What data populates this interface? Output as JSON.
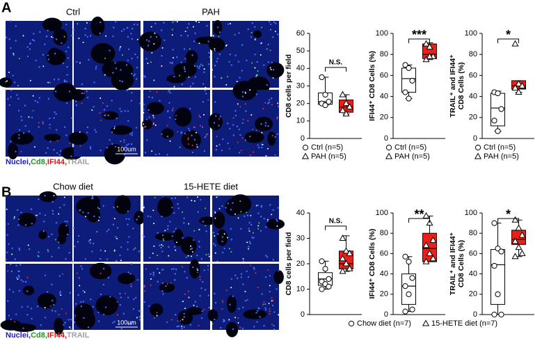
{
  "panels": [
    {
      "label": "A",
      "conditions": [
        "Ctrl",
        "PAH"
      ],
      "scale_bar": "100um",
      "stains": [
        {
          "text": "Nuclei,",
          "color": "#1a1ad8"
        },
        {
          "text": "Cd8,",
          "color": "#1a9a1a"
        },
        {
          "text": "IFI44,",
          "color": "#e01010"
        },
        {
          "text": "TRAIL",
          "color": "#a0a0a0"
        }
      ]
    },
    {
      "label": "B",
      "conditions": [
        "Chow diet",
        "15-HETE diet"
      ],
      "scale_bar": "100um",
      "stains": [
        {
          "text": "Nuclei,",
          "color": "#1a1ad8"
        },
        {
          "text": "Cd8,",
          "color": "#1a9a1a"
        },
        {
          "text": "IFI44,",
          "color": "#e01010"
        },
        {
          "text": "TRAIL",
          "color": "#a0a0a0"
        }
      ],
      "legend": [
        {
          "name": "Chow diet (n=7)",
          "marker": "circle"
        },
        {
          "name": "15-HETE diet (n=7)",
          "marker": "triangle"
        }
      ]
    }
  ],
  "chart_data": [
    {
      "type": "box",
      "ylabel": [
        "CD8 cells per field"
      ],
      "ylim": [
        0,
        60
      ],
      "yticks": [
        0,
        10,
        20,
        30,
        40,
        50,
        60
      ],
      "significance": "N.S.",
      "groups": [
        {
          "name": "Ctrl (n=5)",
          "marker": "circle",
          "color": "#ffffff",
          "whisker_low": 19,
          "q1": 19.5,
          "median": 21,
          "q3": 26,
          "whisker_high": 35,
          "points": [
            35,
            25,
            21,
            20,
            19
          ]
        },
        {
          "name": "PAH (n=5)",
          "marker": "triangle",
          "color": "#e8201a",
          "whisker_low": 14,
          "q1": 15,
          "median": 18,
          "q3": 22,
          "whisker_high": 25,
          "points": [
            25,
            20,
            18,
            16,
            14
          ]
        }
      ]
    },
    {
      "type": "box",
      "ylabel": [
        "IFI44⁺ CD8 Cells (%)"
      ],
      "ylim": [
        0,
        100
      ],
      "yticks": [
        0,
        20,
        40,
        60,
        80,
        100
      ],
      "significance": "***",
      "groups": [
        {
          "name": "Ctrl (n=5)",
          "marker": "circle",
          "color": "#ffffff",
          "whisker_low": 38,
          "q1": 44,
          "median": 57,
          "q3": 67,
          "whisker_high": 70,
          "points": [
            70,
            67,
            55,
            44,
            38
          ]
        },
        {
          "name": "PAH (n=5)",
          "marker": "triangle",
          "color": "#e8201a",
          "whisker_low": 75,
          "q1": 76,
          "median": 80,
          "q3": 90,
          "whisker_high": 91,
          "points": [
            90,
            87,
            78,
            75,
            78
          ]
        }
      ]
    },
    {
      "type": "box",
      "ylabel": [
        "TRAIL⁺ and IFI44⁺",
        "CD8 Cells (%)"
      ],
      "ylim": [
        0,
        100
      ],
      "yticks": [
        0,
        20,
        40,
        60,
        80,
        100
      ],
      "significance": "*",
      "groups": [
        {
          "name": "Ctrl (n=5)",
          "marker": "circle",
          "color": "#ffffff",
          "whisker_low": 7,
          "q1": 12,
          "median": 29,
          "q3": 43,
          "whisker_high": 45,
          "points": [
            44,
            43,
            28,
            17,
            7
          ]
        },
        {
          "name": "PAH (n=5)",
          "marker": "triangle",
          "color": "#e8201a",
          "whisker_low": 44,
          "q1": 47,
          "median": 50,
          "q3": 55,
          "whisker_high": 55,
          "points": [
            90,
            52,
            50,
            48,
            44
          ]
        }
      ]
    },
    {
      "type": "box",
      "ylabel": [
        "CD8 cells per field"
      ],
      "ylim": [
        0,
        40
      ],
      "yticks": [
        0,
        10,
        20,
        30,
        40
      ],
      "significance": "N.S.",
      "groups": [
        {
          "marker": "circle",
          "color": "#ffffff",
          "whisker_low": 10,
          "q1": 11.5,
          "median": 14,
          "q3": 16.5,
          "whisker_high": 21,
          "points": [
            21,
            18,
            14,
            13,
            12,
            11,
            10
          ]
        },
        {
          "marker": "triangle",
          "color": "#e8201a",
          "whisker_low": 17,
          "q1": 18,
          "median": 20,
          "q3": 25,
          "whisker_high": 31,
          "points": [
            30,
            25,
            24,
            22,
            20,
            18,
            17
          ]
        }
      ]
    },
    {
      "type": "box",
      "ylabel": [
        "IFI44⁺ CD8 Cells (%)"
      ],
      "ylim": [
        0,
        100
      ],
      "yticks": [
        0,
        20,
        40,
        60,
        80,
        100
      ],
      "significance": "**",
      "groups": [
        {
          "marker": "circle",
          "color": "#ffffff",
          "whisker_low": 3,
          "q1": 10,
          "median": 28,
          "q3": 40,
          "whisker_high": 57,
          "points": [
            57,
            52,
            36,
            28,
            20,
            5,
            3
          ]
        },
        {
          "marker": "triangle",
          "color": "#e8201a",
          "whisker_low": 52,
          "q1": 52,
          "median": 65,
          "q3": 80,
          "whisker_high": 97,
          "points": [
            97,
            90,
            73,
            68,
            60,
            55,
            52
          ]
        }
      ]
    },
    {
      "type": "box",
      "ylabel": [
        "TRAIL⁺ and IFI44⁺",
        "CD8 Cells (%)"
      ],
      "ylim": [
        0,
        100
      ],
      "yticks": [
        0,
        20,
        40,
        60,
        80,
        100
      ],
      "significance": "*",
      "groups": [
        {
          "marker": "circle",
          "color": "#ffffff",
          "whisker_low": 0,
          "q1": 10,
          "median": 49,
          "q3": 64,
          "whisker_high": 90,
          "points": [
            90,
            65,
            62,
            48,
            20,
            0,
            0
          ]
        },
        {
          "marker": "triangle",
          "color": "#e8201a",
          "whisker_low": 57,
          "q1": 69,
          "median": 74,
          "q3": 83,
          "whisker_high": 93,
          "points": [
            93,
            85,
            78,
            72,
            66,
            60,
            57
          ]
        }
      ]
    }
  ]
}
